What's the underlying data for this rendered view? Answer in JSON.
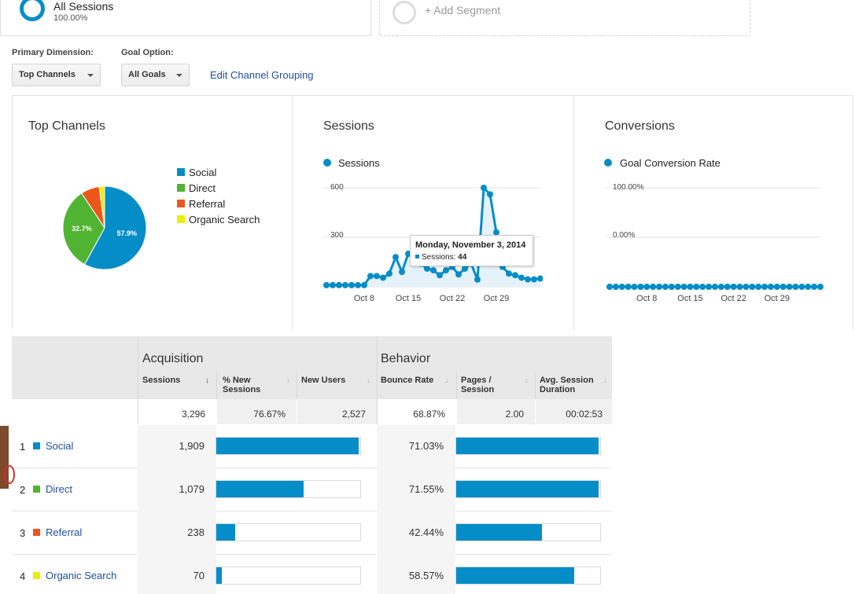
{
  "segments": {
    "all_title": "All Sessions",
    "all_pct": "100.00%",
    "add_label": "+ Add Segment"
  },
  "controls": {
    "primary_label": "Primary Dimension:",
    "primary_value": "Top Channels",
    "goal_label": "Goal Option:",
    "goal_value": "All Goals",
    "edit_link": "Edit Channel Grouping"
  },
  "panels": {
    "top_channels_title": "Top Channels",
    "sessions_title": "Sessions",
    "conversions_title": "Conversions"
  },
  "chart_data": [
    {
      "type": "pie",
      "title": "Top Channels",
      "categories": [
        "Social",
        "Direct",
        "Referral",
        "Organic Search"
      ],
      "values": [
        57.9,
        32.7,
        7.2,
        2.1
      ],
      "slice_labels": [
        "57.9%",
        "32.7%",
        "",
        ""
      ],
      "colors": [
        "#058dc7",
        "#50b432",
        "#ed561b",
        "#edef00"
      ],
      "legend": "right"
    },
    {
      "type": "line",
      "title": "Sessions",
      "series": [
        {
          "name": "Sessions",
          "values": [
            10,
            10,
            10,
            10,
            10,
            10,
            10,
            65,
            65,
            55,
            80,
            180,
            90,
            200,
            170,
            140,
            110,
            100,
            70,
            100,
            120,
            75,
            110,
            140,
            44,
            600,
            560,
            330,
            120,
            80,
            70,
            55,
            45,
            45,
            50
          ]
        }
      ],
      "x_ticks": [
        "Oct 8",
        "Oct 15",
        "Oct 22",
        "Oct 29"
      ],
      "y_ticks": [
        "600",
        "300"
      ],
      "ylim": [
        0,
        600
      ],
      "color": "#058dc7",
      "tooltip": {
        "date": "Monday, November 3, 2014",
        "label": "Sessions:",
        "value": "44"
      }
    },
    {
      "type": "line",
      "title": "Conversions",
      "series": [
        {
          "name": "Goal Conversion Rate",
          "values": [
            0,
            0,
            0,
            0,
            0,
            0,
            0,
            0,
            0,
            0,
            0,
            0,
            0,
            0,
            0,
            0,
            0,
            0,
            0,
            0,
            0,
            0,
            0,
            0,
            0,
            0,
            0,
            0,
            0,
            0,
            0,
            0,
            0,
            0,
            0
          ]
        }
      ],
      "x_ticks": [
        "Oct 8",
        "Oct 15",
        "Oct 22",
        "Oct 29"
      ],
      "y_ticks": [
        "100.00%",
        "0.00%"
      ],
      "ylim": [
        0,
        100
      ],
      "color": "#058dc7"
    }
  ],
  "table": {
    "groups": [
      "Acquisition",
      "Behavior"
    ],
    "columns": [
      "Sessions",
      "% New Sessions",
      "New Users",
      "Bounce Rate",
      "Pages / Session",
      "Avg. Session Duration"
    ],
    "totals": [
      "3,296",
      "76.67%",
      "2,527",
      "68.87%",
      "2.00",
      "00:02:53"
    ],
    "rows": [
      {
        "num": "1",
        "name": "Social",
        "color": "#058dc7",
        "sessions": "1,909",
        "sessions_share": 0.579,
        "bounce": "71.03%",
        "bounce_share": 0.7103
      },
      {
        "num": "2",
        "name": "Direct",
        "color": "#50b432",
        "sessions": "1,079",
        "sessions_share": 0.327,
        "bounce": "71.55%",
        "bounce_share": 0.7155
      },
      {
        "num": "3",
        "name": "Referral",
        "color": "#ed561b",
        "sessions": "238",
        "sessions_share": 0.072,
        "bounce": "42.44%",
        "bounce_share": 0.4244
      },
      {
        "num": "4",
        "name": "Organic Search",
        "color": "#edef00",
        "sessions": "70",
        "sessions_share": 0.021,
        "bounce": "58.57%",
        "bounce_share": 0.5857
      }
    ]
  }
}
